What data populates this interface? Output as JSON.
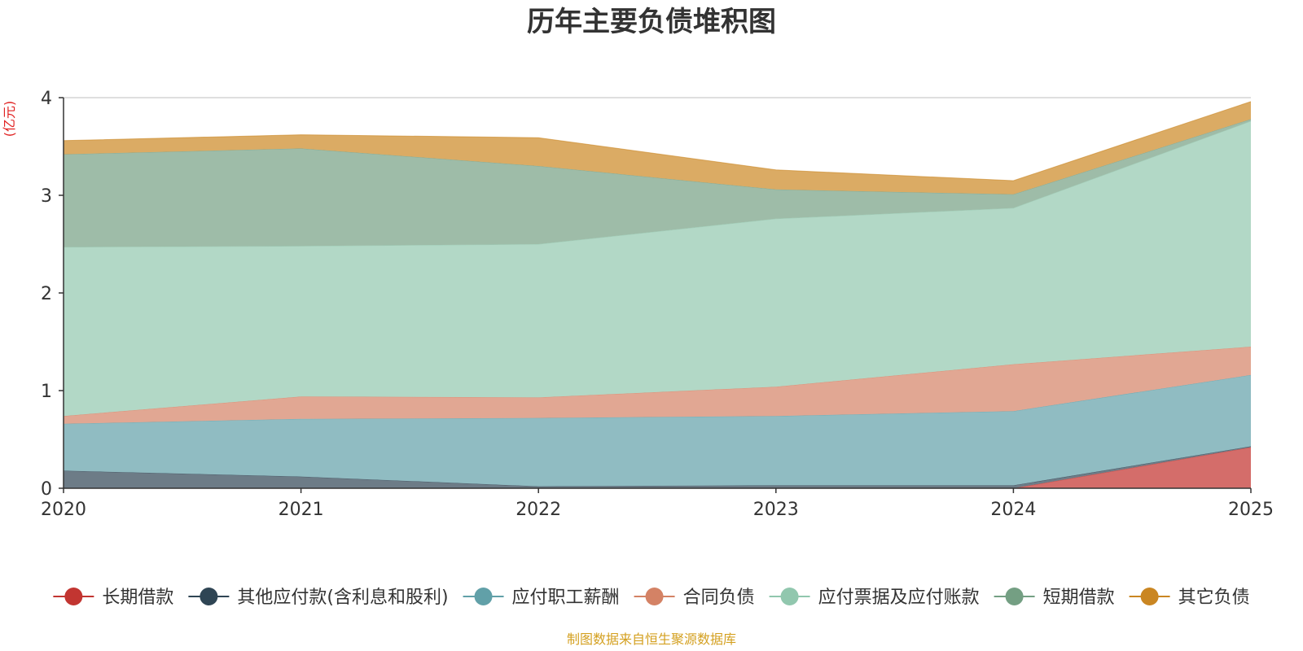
{
  "chart_data": {
    "type": "area",
    "stacked": true,
    "title": "历年主要负债堆积图",
    "ylabel": "(亿元)",
    "xlabel": "",
    "x": [
      "2020",
      "2021",
      "2022",
      "2023",
      "2024",
      "2025"
    ],
    "ylim": [
      0,
      4
    ],
    "yticks": [
      "0",
      "1",
      "2",
      "3",
      "4"
    ],
    "grid": true,
    "legend_position": "bottom",
    "source": "制图数据来自恒生聚源数据库",
    "series": [
      {
        "name": "长期借款",
        "color": "#c23531",
        "fill": "#d46d6a",
        "values": [
          0.0,
          0.0,
          0.0,
          0.0,
          0.0,
          0.42
        ]
      },
      {
        "name": "其他应付款(含利息和股利)",
        "color": "#2f4554",
        "fill": "#6d7c87",
        "values": [
          0.18,
          0.12,
          0.02,
          0.03,
          0.03,
          0.01
        ]
      },
      {
        "name": "应付职工薪酬",
        "color": "#61a0a8",
        "fill": "#90bcc2",
        "values": [
          0.48,
          0.59,
          0.7,
          0.71,
          0.76,
          0.73
        ]
      },
      {
        "name": "合同负债",
        "color": "#d48265",
        "fill": "#e1a793",
        "values": [
          0.08,
          0.23,
          0.21,
          0.3,
          0.48,
          0.29
        ]
      },
      {
        "name": "应付票据及应付账款",
        "color": "#91c7ae",
        "fill": "#b2d8c6",
        "values": [
          1.73,
          1.54,
          1.57,
          1.72,
          1.6,
          2.31
        ]
      },
      {
        "name": "短期借款",
        "color": "#749f83",
        "fill": "#9ebca8",
        "values": [
          0.95,
          1.0,
          0.8,
          0.3,
          0.14,
          0.02
        ]
      },
      {
        "name": "其它负债",
        "color": "#ca8622",
        "fill": "#dbab64",
        "values": [
          0.14,
          0.14,
          0.29,
          0.2,
          0.14,
          0.18
        ]
      }
    ]
  }
}
